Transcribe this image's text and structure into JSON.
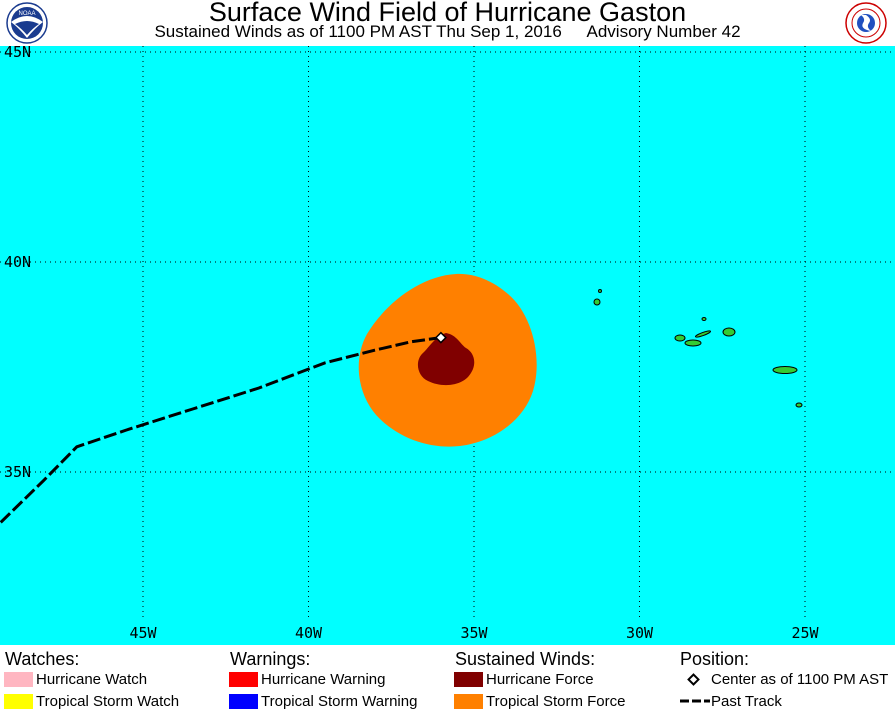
{
  "header": {
    "title": "Surface Wind Field of Hurricane Gaston",
    "subtitle_left": "Sustained Winds as of 1100 PM AST Thu Sep 1, 2016",
    "subtitle_right": "Advisory Number 42",
    "left_logo": "noaa-logo",
    "right_logo": "nws-logo"
  },
  "map": {
    "ocean_color": "#00ffff",
    "land_color": "#33cc33",
    "lat_labels": [
      "45N",
      "40N",
      "35N"
    ],
    "lon_labels": [
      "45W",
      "40W",
      "35W",
      "30W",
      "25W"
    ],
    "lat_values": [
      45,
      40,
      35
    ],
    "lon_values": [
      -45,
      -40,
      -35,
      -30,
      -25
    ],
    "grid": "dotted"
  },
  "storm": {
    "center": {
      "lat": 38.2,
      "lon": -36.0
    },
    "past_track": [
      {
        "lat": 33.8,
        "lon": -49.3
      },
      {
        "lat": 34.8,
        "lon": -48.0
      },
      {
        "lat": 35.6,
        "lon": -47.0
      },
      {
        "lat": 36.0,
        "lon": -45.5
      },
      {
        "lat": 36.5,
        "lon": -43.5
      },
      {
        "lat": 37.0,
        "lon": -41.5
      },
      {
        "lat": 37.6,
        "lon": -39.5
      },
      {
        "lat": 37.9,
        "lon": -38.0
      },
      {
        "lat": 38.1,
        "lon": -36.9
      },
      {
        "lat": 38.2,
        "lon": -36.0
      }
    ],
    "hurricane_force_color": "#800000",
    "tropical_storm_force_color": "#ff8000"
  },
  "legend": {
    "watches": {
      "heading": "Watches:",
      "items": [
        {
          "label": "Hurricane Watch",
          "color": "#ffb6c1"
        },
        {
          "label": "Tropical Storm Watch",
          "color": "#ffff00"
        }
      ]
    },
    "warnings": {
      "heading": "Warnings:",
      "items": [
        {
          "label": "Hurricane Warning",
          "color": "#ff0000"
        },
        {
          "label": "Tropical Storm Warning",
          "color": "#0000ff"
        }
      ]
    },
    "winds": {
      "heading": "Sustained Winds:",
      "items": [
        {
          "label": "Hurricane Force",
          "color": "#800000"
        },
        {
          "label": "Tropical Storm Force",
          "color": "#ff8000"
        }
      ]
    },
    "position": {
      "heading": "Position:",
      "center_label": "Center as of 1100 PM AST",
      "track_label": "Past Track"
    }
  }
}
